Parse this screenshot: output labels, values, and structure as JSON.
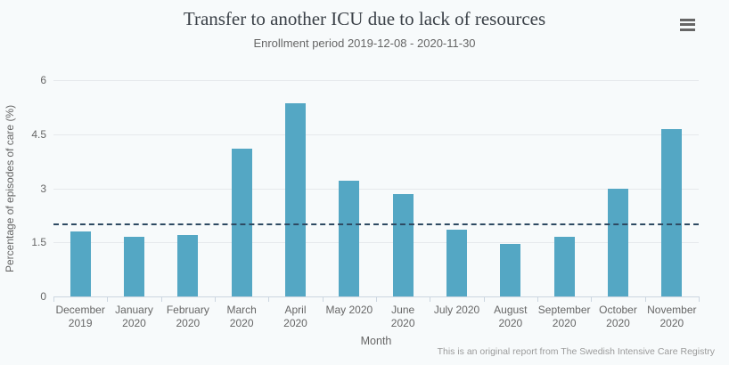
{
  "header": {
    "title": "Transfer to another ICU due to lack of resources",
    "subtitle": "Enrollment period 2019-12-08 - 2020-11-30"
  },
  "chart_data": {
    "type": "bar",
    "title": "Transfer to another ICU due to lack of resources",
    "subtitle": "Enrollment period 2019-12-08 - 2020-11-30",
    "xlabel": "Month",
    "ylabel": "Percentage of episodes of care (%)",
    "categories": [
      "December 2019",
      "January 2020",
      "February 2020",
      "March 2020",
      "April 2020",
      "May 2020",
      "June 2020",
      "July 2020",
      "August 2020",
      "September 2020",
      "October 2020",
      "November 2020"
    ],
    "category_label_lines": [
      [
        "December",
        "2019"
      ],
      [
        "January",
        "2020"
      ],
      [
        "February",
        "2020"
      ],
      [
        "March",
        "2020"
      ],
      [
        "April",
        "2020"
      ],
      [
        "May 2020"
      ],
      [
        "June",
        "2020"
      ],
      [
        "July 2020"
      ],
      [
        "August",
        "2020"
      ],
      [
        "September",
        "2020"
      ],
      [
        "October",
        "2020"
      ],
      [
        "November",
        "2020"
      ]
    ],
    "values": [
      1.8,
      1.65,
      1.7,
      4.1,
      5.35,
      3.2,
      2.85,
      1.85,
      1.45,
      1.65,
      3.0,
      4.65
    ],
    "yticks": [
      0,
      1.5,
      3,
      4.5,
      6
    ],
    "ytick_labels": [
      "0",
      "1.5",
      "3",
      "4.5",
      "6"
    ],
    "ylim": [
      0,
      6
    ],
    "grid": true,
    "legend_position": "none",
    "reference_line": {
      "value": 2,
      "style": "dashed"
    },
    "credits": "This is an original report from The Swedish Intensive Care Registry"
  },
  "colors": {
    "background": "#f7fafb",
    "bar": "#54a7c4",
    "grid": "#e6e9ec",
    "axis": "#ccd6e0",
    "reference": "#2e4a62",
    "title_text": "#3b4148",
    "muted_text": "#666666",
    "credits_text": "#9b9b9b"
  }
}
